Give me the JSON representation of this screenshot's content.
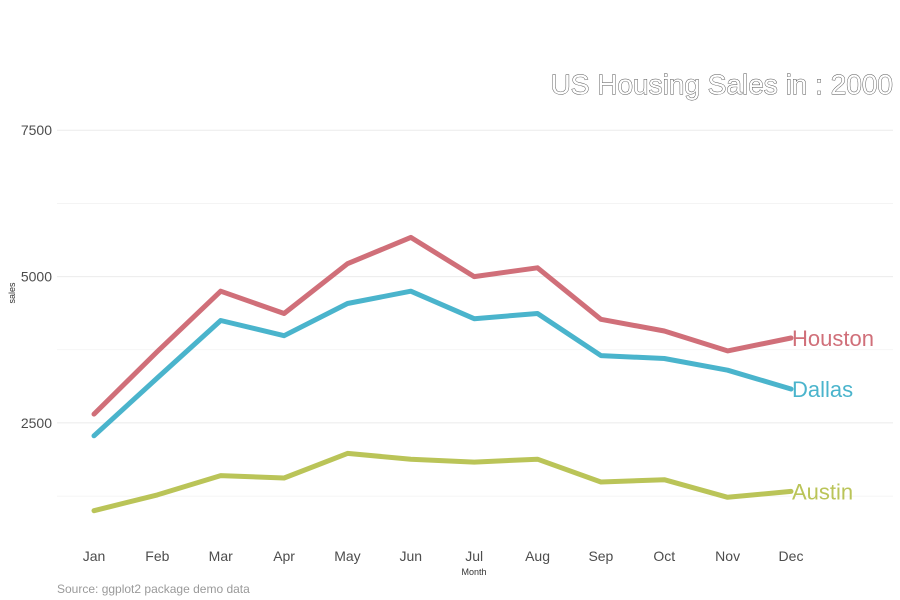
{
  "chart_data": {
    "type": "line",
    "title": "US Housing Sales in : 2000",
    "xlabel": "Month",
    "ylabel": "sales",
    "caption": "Source: ggplot2 package demo data",
    "categories": [
      "Jan",
      "Feb",
      "Mar",
      "Apr",
      "May",
      "Jun",
      "Jul",
      "Aug",
      "Sep",
      "Oct",
      "Nov",
      "Dec"
    ],
    "yticks": [
      2500,
      5000,
      7500
    ],
    "ylim": [
      500,
      8700
    ],
    "grid": true,
    "legend": "direct labels at line ends",
    "series": [
      {
        "name": "Houston",
        "color": "#d06f79",
        "values": [
          2650,
          3720,
          4750,
          4370,
          5220,
          5670,
          5000,
          5150,
          4270,
          4070,
          3730,
          3950
        ]
      },
      {
        "name": "Dallas",
        "color": "#4ab4cc",
        "values": [
          2280,
          3270,
          4250,
          3990,
          4540,
          4750,
          4280,
          4370,
          3650,
          3600,
          3400,
          3080
        ]
      },
      {
        "name": "Austin",
        "color": "#bac458",
        "values": [
          1000,
          1270,
          1600,
          1560,
          1980,
          1880,
          1830,
          1880,
          1490,
          1530,
          1230,
          1330
        ]
      }
    ]
  }
}
